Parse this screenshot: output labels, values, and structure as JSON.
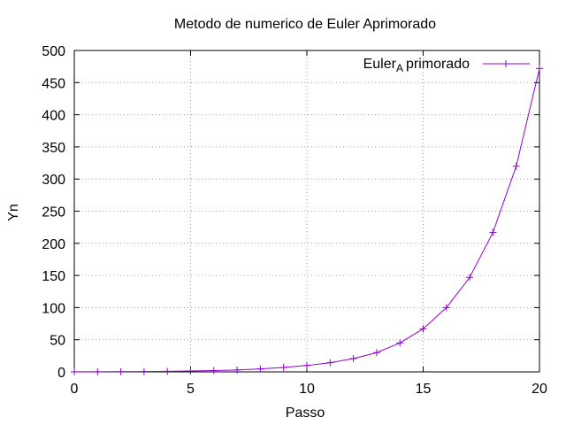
{
  "chart_data": {
    "type": "line",
    "title": "Metodo de numerico de Euler Aprimorado",
    "xlabel": "Passo",
    "ylabel": "Yn",
    "xlim": [
      0,
      20
    ],
    "ylim": [
      0,
      500
    ],
    "xticks": [
      0,
      5,
      10,
      15,
      20
    ],
    "yticks": [
      0,
      50,
      100,
      150,
      200,
      250,
      300,
      350,
      400,
      450,
      500
    ],
    "grid": true,
    "legend_position": "top-right",
    "series": [
      {
        "name": "Euler",
        "name_subscript": "A",
        "name_suffix": "primorado",
        "color": "#9400d3",
        "x": [
          0,
          1,
          2,
          3,
          4,
          5,
          6,
          7,
          8,
          9,
          10,
          11,
          12,
          13,
          14,
          15,
          16,
          17,
          18,
          19,
          20
        ],
        "y": [
          0.1,
          0.2,
          0.3,
          0.5,
          0.8,
          1.3,
          2.0,
          3.0,
          4.6,
          6.8,
          9.9,
          14.3,
          20.6,
          30.0,
          45.0,
          67.0,
          100.0,
          147.0,
          217.0,
          320.0,
          472.0
        ]
      }
    ]
  }
}
